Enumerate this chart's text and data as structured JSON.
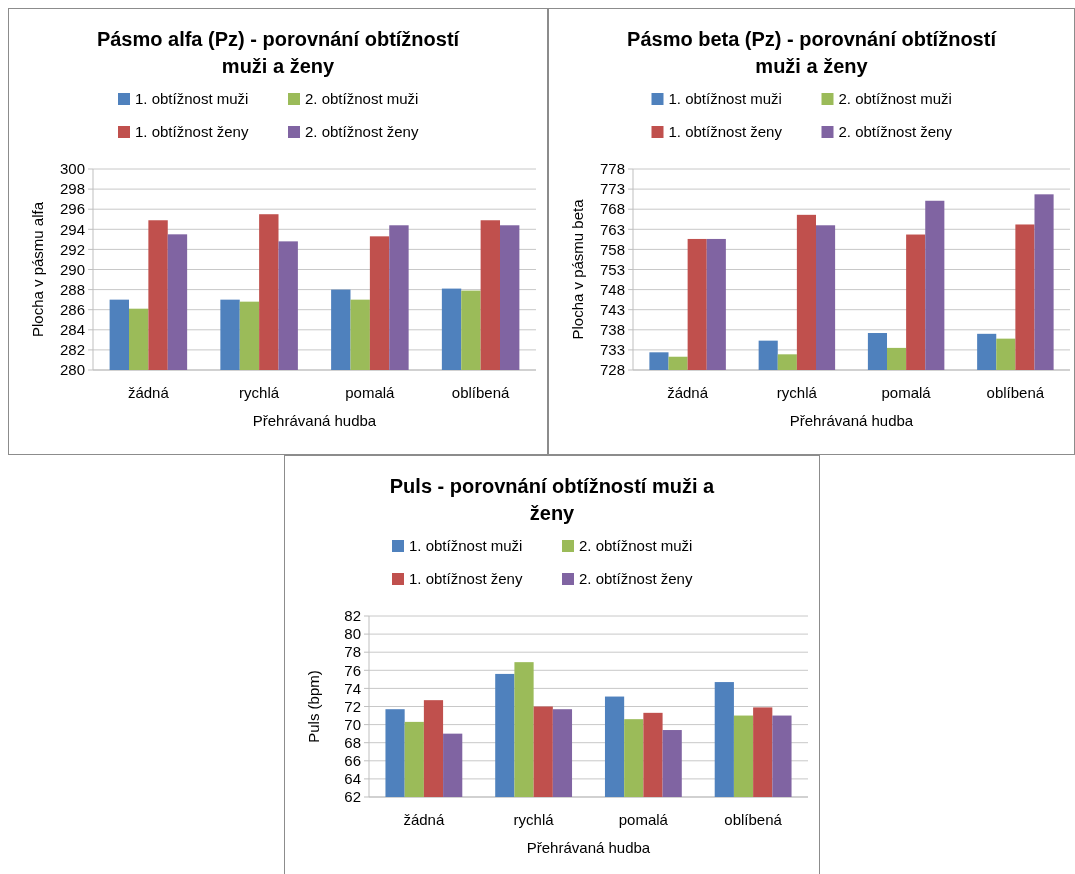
{
  "chart_data": [
    {
      "type": "bar",
      "title": "Pásmo alfa (Pz) - porovnání obtížností muži a ženy",
      "xlabel": "Přehrávaná hudba",
      "ylabel": "Plocha v pásmu alfa",
      "categories": [
        "žádná",
        "rychlá",
        "pomalá",
        "oblíbená"
      ],
      "ylim": [
        280,
        300
      ],
      "yticks": [
        280,
        282,
        284,
        286,
        288,
        290,
        292,
        294,
        296,
        298,
        300
      ],
      "grid": "y",
      "legend": "top",
      "series": [
        {
          "name": "1. obtížnost muži",
          "color": "#4f81bd",
          "values": [
            287.0,
            287.0,
            288.0,
            288.1
          ]
        },
        {
          "name": "2. obtížnost muži",
          "color": "#9bbb59",
          "values": [
            286.1,
            286.8,
            287.0,
            287.9
          ]
        },
        {
          "name": "1. obtížnost ženy",
          "color": "#c0504d",
          "values": [
            294.9,
            295.5,
            293.3,
            294.9
          ]
        },
        {
          "name": "2. obtížnost ženy",
          "color": "#8064a2",
          "values": [
            293.5,
            292.8,
            294.4,
            294.4
          ]
        }
      ]
    },
    {
      "type": "bar",
      "title": "Pásmo beta (Pz) - porovnání obtížností muži a ženy",
      "xlabel": "Přehrávaná hudba",
      "ylabel": "Plocha v pásmu beta",
      "categories": [
        "žádná",
        "rychlá",
        "pomalá",
        "oblíbená"
      ],
      "ylim": [
        728,
        778
      ],
      "yticks": [
        728,
        733,
        738,
        743,
        748,
        753,
        758,
        763,
        768,
        773,
        778
      ],
      "grid": "y",
      "legend": "top",
      "series": [
        {
          "name": "1. obtížnost muži",
          "color": "#4f81bd",
          "values": [
            732.4,
            735.3,
            737.2,
            737.0
          ]
        },
        {
          "name": "2. obtížnost muži",
          "color": "#9bbb59",
          "values": [
            731.3,
            731.9,
            733.5,
            735.8
          ]
        },
        {
          "name": "1. obtížnost ženy",
          "color": "#c0504d",
          "values": [
            760.6,
            766.6,
            761.7,
            764.2
          ]
        },
        {
          "name": "2. obtížnost ženy",
          "color": "#8064a2",
          "values": [
            760.6,
            764.0,
            770.1,
            771.7
          ]
        }
      ]
    },
    {
      "type": "bar",
      "title": "Puls - porovnání obtížností muži a ženy",
      "xlabel": "Přehrávaná hudba",
      "ylabel": "Puls (bpm)",
      "categories": [
        "žádná",
        "rychlá",
        "pomalá",
        "oblíbená"
      ],
      "ylim": [
        62,
        82
      ],
      "yticks": [
        62,
        64,
        66,
        68,
        70,
        72,
        74,
        76,
        78,
        80,
        82
      ],
      "grid": "y",
      "legend": "top",
      "series": [
        {
          "name": "1. obtížnost muži",
          "color": "#4f81bd",
          "values": [
            71.7,
            75.6,
            73.1,
            74.7
          ]
        },
        {
          "name": "2. obtížnost muži",
          "color": "#9bbb59",
          "values": [
            70.3,
            76.9,
            70.6,
            71.0
          ]
        },
        {
          "name": "1. obtížnost ženy",
          "color": "#c0504d",
          "values": [
            72.7,
            72.0,
            71.3,
            71.9
          ]
        },
        {
          "name": "2. obtížnost ženy",
          "color": "#8064a2",
          "values": [
            69.0,
            71.7,
            69.4,
            71.0
          ]
        }
      ]
    }
  ]
}
